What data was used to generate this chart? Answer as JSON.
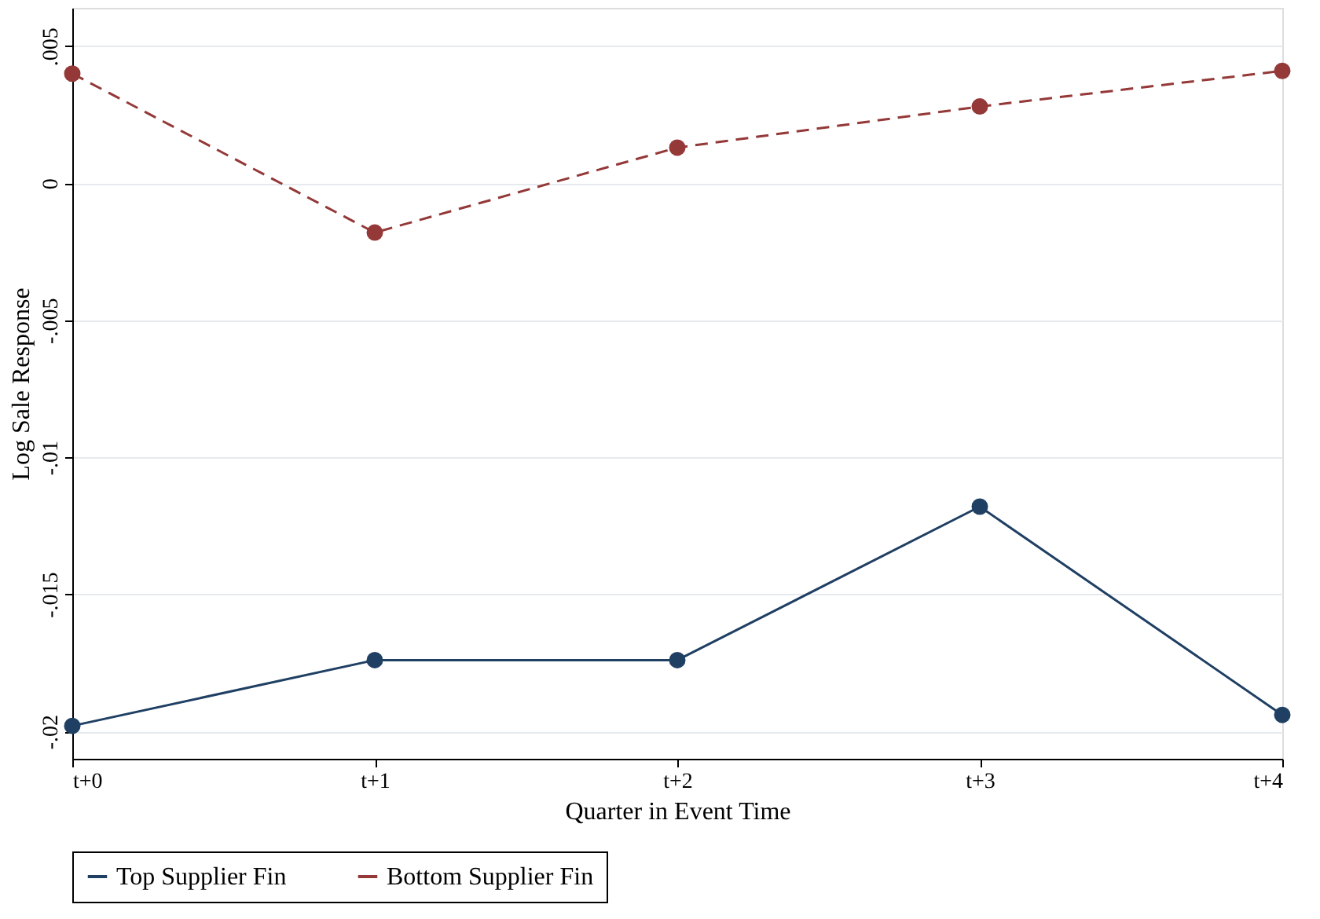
{
  "chart_data": {
    "type": "line",
    "xlabel": "Quarter in Event Time",
    "ylabel": "Log Sale Response",
    "categories": [
      "t+0",
      "t+1",
      "t+2",
      "t+3",
      "t+4"
    ],
    "series": [
      {
        "name": "Top Supplier Fin",
        "color": "#1f3f63",
        "line_style": "solid",
        "values": [
          -0.0198,
          -0.0174,
          -0.0174,
          -0.0118,
          -0.0194
        ]
      },
      {
        "name": "Bottom Supplier Fin",
        "color": "#943838",
        "line_style": "dashed",
        "values": [
          0.004,
          -0.0018,
          0.0013,
          0.0028,
          0.0041
        ]
      }
    ],
    "ylim": [
      -0.021,
      0.0064
    ],
    "yticks": [
      {
        "value": 0.005,
        "label": ".005"
      },
      {
        "value": 0,
        "label": "0"
      },
      {
        "value": -0.005,
        "label": "-.005"
      },
      {
        "value": -0.01,
        "label": "-.01"
      },
      {
        "value": -0.015,
        "label": "-.015"
      },
      {
        "value": -0.02,
        "label": "-.02"
      }
    ],
    "grid": "y",
    "legend": "bottom",
    "marker": "circle"
  }
}
